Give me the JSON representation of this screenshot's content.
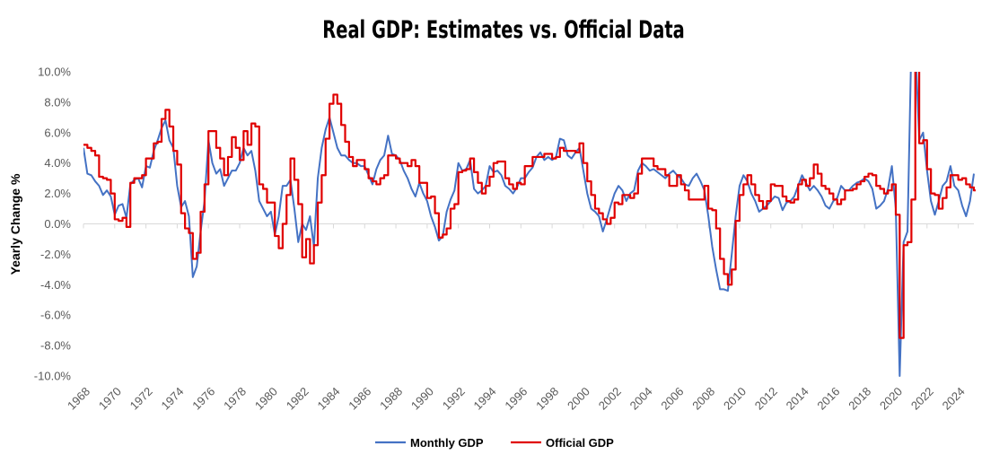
{
  "chart_data": {
    "type": "line",
    "title": "Real GDP: Estimates vs. Official Data",
    "xlabel": "",
    "ylabel": "Yearly Change %",
    "ylim": [
      -10,
      10
    ],
    "xlim": [
      1968,
      2025
    ],
    "y_ticks": [
      "10.0%",
      "8.0%",
      "6.0%",
      "4.0%",
      "2.0%",
      "0.0%",
      "-2.0%",
      "-4.0%",
      "-6.0%",
      "-8.0%",
      "-10.0%"
    ],
    "y_tick_values": [
      10,
      8,
      6,
      4,
      2,
      0,
      -2,
      -4,
      -6,
      -8,
      -10
    ],
    "x_ticks": [
      "1968",
      "1970",
      "1972",
      "1974",
      "1976",
      "1978",
      "1980",
      "1982",
      "1984",
      "1986",
      "1988",
      "1990",
      "1992",
      "1994",
      "1996",
      "1998",
      "2000",
      "2002",
      "2004",
      "2006",
      "2008",
      "2010",
      "2012",
      "2014",
      "2016",
      "2018",
      "2020",
      "2022",
      "2024"
    ],
    "legend_position": "bottom",
    "x_start": 1968,
    "x_step": 0.25,
    "colors": {
      "monthly": "#4472C4",
      "official": "#E00000",
      "zero_line": "#D9D9D9"
    },
    "series": [
      {
        "name": "Monthly GDP",
        "style": "line",
        "values": [
          5.0,
          3.3,
          3.2,
          2.8,
          2.5,
          1.9,
          2.2,
          1.8,
          0.6,
          1.2,
          1.3,
          0.4,
          2.6,
          2.9,
          3.0,
          2.4,
          3.8,
          3.7,
          4.8,
          5.5,
          6.3,
          6.8,
          5.5,
          5.0,
          2.5,
          1.1,
          1.5,
          0.5,
          -3.5,
          -2.8,
          -0.5,
          1.5,
          5.5,
          4.0,
          3.3,
          3.6,
          2.5,
          3.0,
          3.5,
          3.5,
          4.0,
          5.0,
          4.5,
          4.8,
          3.5,
          1.5,
          1.0,
          0.5,
          0.8,
          -0.7,
          0.5,
          2.5,
          2.5,
          2.9,
          1.0,
          -1.2,
          0.0,
          -0.4,
          0.5,
          -1.5,
          3.0,
          5.0,
          6.2,
          7.0,
          6.0,
          5.0,
          4.5,
          4.5,
          4.2,
          4.0,
          4.0,
          3.8,
          3.8,
          3.2,
          2.6,
          3.6,
          4.2,
          4.5,
          5.8,
          4.6,
          4.5,
          4.2,
          3.5,
          3.0,
          2.3,
          1.8,
          2.7,
          2.0,
          1.5,
          0.5,
          -0.2,
          -1.1,
          -0.8,
          0.8,
          1.6,
          2.2,
          4.0,
          3.5,
          3.6,
          4.2,
          2.3,
          2.0,
          2.2,
          2.5,
          3.8,
          3.4,
          3.5,
          3.2,
          2.5,
          2.3,
          2.0,
          2.4,
          3.0,
          3.0,
          3.4,
          3.7,
          4.4,
          4.7,
          4.2,
          4.4,
          4.2,
          4.4,
          5.6,
          5.5,
          4.5,
          4.3,
          4.7,
          5.0,
          3.5,
          2.0,
          1.0,
          0.8,
          0.5,
          -0.5,
          0.3,
          1.2,
          2.0,
          2.5,
          2.2,
          1.5,
          2.0,
          2.2,
          3.5,
          4.0,
          3.8,
          3.5,
          3.6,
          3.4,
          3.2,
          3.0,
          3.3,
          3.5,
          3.2,
          3.0,
          2.6,
          2.5,
          3.0,
          3.3,
          2.8,
          2.2,
          0.5,
          -1.5,
          -3.0,
          -4.3,
          -4.3,
          -4.4,
          -2.0,
          0.5,
          2.5,
          3.2,
          2.8,
          2.0,
          1.5,
          0.8,
          1.0,
          1.2,
          1.5,
          1.8,
          1.7,
          0.9,
          1.4,
          1.5,
          1.8,
          2.5,
          3.2,
          2.7,
          2.2,
          2.5,
          2.2,
          1.8,
          1.2,
          1.0,
          1.5,
          1.7,
          2.5,
          2.2,
          2.2,
          2.5,
          2.7,
          2.8,
          3.0,
          2.8,
          2.3,
          1.0,
          1.2,
          1.5,
          2.3,
          3.8,
          1.0,
          -10.0,
          -1.2,
          -0.5,
          12.0,
          12.0,
          5.5,
          6.0,
          3.5,
          1.5,
          0.6,
          1.5,
          2.5,
          2.8,
          3.8,
          2.5,
          2.2,
          1.2,
          0.5,
          1.5,
          3.3
        ]
      },
      {
        "name": "Official GDP",
        "style": "step",
        "values": [
          5.2,
          5.0,
          4.8,
          4.5,
          3.1,
          3.0,
          2.9,
          2.0,
          0.3,
          0.2,
          0.4,
          -0.2,
          2.7,
          3.0,
          3.0,
          3.2,
          4.3,
          4.3,
          5.3,
          5.4,
          6.9,
          7.5,
          6.4,
          4.8,
          3.9,
          0.7,
          -0.3,
          -0.6,
          -2.3,
          -1.9,
          0.8,
          2.6,
          6.1,
          6.1,
          5.0,
          4.3,
          3.2,
          4.4,
          5.7,
          5.0,
          4.2,
          6.1,
          5.2,
          6.6,
          6.4,
          2.6,
          2.3,
          1.4,
          1.4,
          -0.8,
          -1.6,
          0.0,
          1.9,
          4.3,
          2.9,
          1.3,
          -2.2,
          -1.0,
          -2.6,
          -1.4,
          1.4,
          3.2,
          5.6,
          7.9,
          8.5,
          7.9,
          6.5,
          5.4,
          4.4,
          3.8,
          4.2,
          4.2,
          3.6,
          3.0,
          2.8,
          2.6,
          3.0,
          3.2,
          4.5,
          4.5,
          4.3,
          4.0,
          4.0,
          3.8,
          4.2,
          3.8,
          2.7,
          2.7,
          1.7,
          1.8,
          0.7,
          -0.9,
          -0.7,
          -0.3,
          1.0,
          1.3,
          3.4,
          3.5,
          3.6,
          4.3,
          3.4,
          2.7,
          2.0,
          2.5,
          3.1,
          4.0,
          4.1,
          4.1,
          3.0,
          2.6,
          2.3,
          2.7,
          2.6,
          3.8,
          3.8,
          4.4,
          4.4,
          4.4,
          4.6,
          4.6,
          4.3,
          4.4,
          5.0,
          4.8,
          4.8,
          4.8,
          4.7,
          5.3,
          4.0,
          2.8,
          1.9,
          1.0,
          0.7,
          0.3,
          0.0,
          0.4,
          1.4,
          1.3,
          1.9,
          1.9,
          1.7,
          2.0,
          3.3,
          4.3,
          4.3,
          4.3,
          3.8,
          3.6,
          3.6,
          3.2,
          2.5,
          2.5,
          3.2,
          2.6,
          2.2,
          1.6,
          1.6,
          1.6,
          1.6,
          2.5,
          1.0,
          0.9,
          -0.3,
          -2.3,
          -3.3,
          -4.0,
          -3.0,
          0.2,
          1.9,
          2.6,
          3.2,
          2.6,
          1.9,
          1.5,
          1.0,
          1.5,
          2.6,
          2.5,
          2.5,
          1.8,
          1.5,
          1.4,
          1.6,
          2.6,
          2.9,
          2.5,
          3.0,
          3.9,
          3.3,
          2.5,
          2.3,
          2.0,
          1.6,
          1.3,
          1.6,
          2.2,
          2.2,
          2.3,
          2.6,
          2.8,
          3.1,
          3.3,
          3.2,
          2.5,
          2.3,
          2.0,
          2.2,
          2.6,
          0.6,
          -7.5,
          -1.4,
          -1.2,
          1.6,
          12.2,
          5.3,
          5.5,
          3.6,
          2.0,
          1.9,
          1.0,
          1.7,
          2.4,
          3.2,
          3.2,
          2.9,
          3.0,
          2.6,
          2.4,
          2.2
        ]
      }
    ]
  }
}
